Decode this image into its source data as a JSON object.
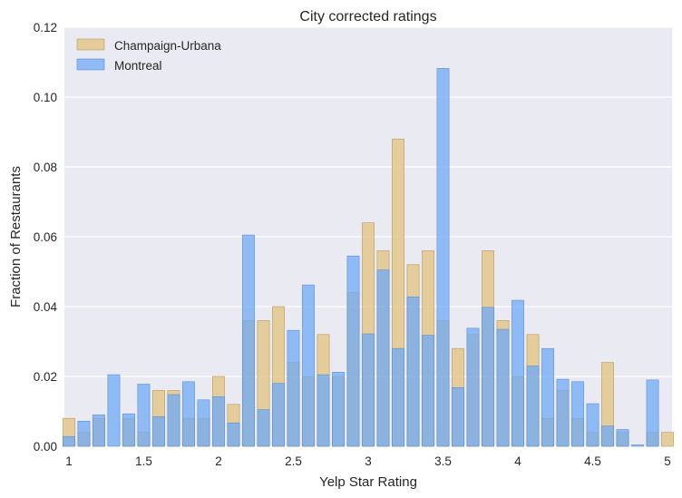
{
  "chart_data": {
    "type": "bar",
    "title": "City corrected ratings",
    "xlabel": "Yelp Star Rating",
    "ylabel": "Fraction of Restaurants",
    "xlim": [
      0.97,
      5.03
    ],
    "ylim": [
      0,
      0.12
    ],
    "xticks": [
      "1",
      "1.5",
      "2",
      "2.5",
      "3",
      "3.5",
      "4",
      "4.5",
      "5"
    ],
    "yticks": [
      "0.00",
      "0.02",
      "0.04",
      "0.06",
      "0.08",
      "0.10",
      "0.12"
    ],
    "grid": true,
    "legend_position": "top-left",
    "x": [
      1.0,
      1.1,
      1.2,
      1.3,
      1.4,
      1.5,
      1.6,
      1.7,
      1.8,
      1.9,
      2.0,
      2.1,
      2.2,
      2.3,
      2.4,
      2.5,
      2.6,
      2.7,
      2.8,
      2.9,
      3.0,
      3.1,
      3.2,
      3.3,
      3.4,
      3.5,
      3.6,
      3.7,
      3.8,
      3.9,
      4.0,
      4.1,
      4.2,
      4.3,
      4.4,
      4.5,
      4.6,
      4.7,
      4.8,
      4.9,
      5.0
    ],
    "series": [
      {
        "name": "Champaign-Urbana",
        "color": "#e1c17e",
        "values": [
          0.008,
          0.004,
          0.008,
          0.0,
          0.008,
          0.004,
          0.016,
          0.016,
          0.008,
          0.008,
          0.02,
          0.012,
          0.036,
          0.036,
          0.04,
          0.024,
          0.02,
          0.032,
          0.02,
          0.044,
          0.064,
          0.056,
          0.088,
          0.052,
          0.056,
          0.036,
          0.028,
          0.032,
          0.056,
          0.036,
          0.02,
          0.032,
          0.008,
          0.016,
          0.008,
          0.004,
          0.024,
          0.004,
          0.0,
          0.004,
          0.004
        ]
      },
      {
        "name": "Montreal",
        "color": "#6fabf7",
        "values": [
          0.0028,
          0.0072,
          0.009,
          0.0205,
          0.0093,
          0.0178,
          0.0085,
          0.0148,
          0.0185,
          0.0133,
          0.0142,
          0.0067,
          0.0605,
          0.0105,
          0.018,
          0.0332,
          0.0462,
          0.0205,
          0.0212,
          0.0545,
          0.0322,
          0.0505,
          0.028,
          0.0428,
          0.0318,
          0.1082,
          0.0168,
          0.0338,
          0.0398,
          0.0335,
          0.0418,
          0.023,
          0.028,
          0.0192,
          0.0185,
          0.0122,
          0.0058,
          0.0048,
          0.0004,
          0.019,
          0.0
        ]
      }
    ]
  }
}
